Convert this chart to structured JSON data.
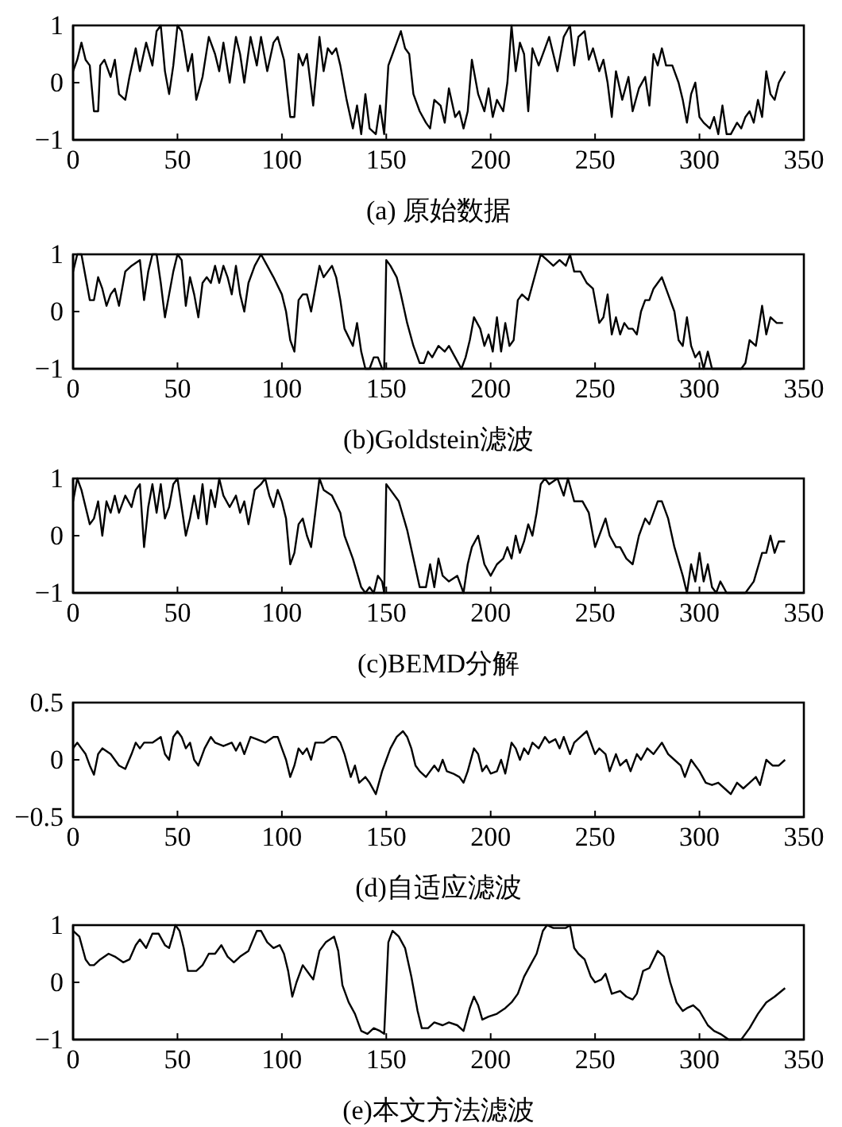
{
  "chart_data": [
    {
      "type": "line",
      "xlabel": "(a) 原始数据",
      "xlim": [
        0,
        350
      ],
      "xticks": [
        0,
        50,
        100,
        150,
        200,
        250,
        300,
        350
      ],
      "ylim": [
        -1,
        1
      ],
      "yticks": [
        -1,
        0,
        1
      ],
      "grid": false,
      "line_style": "solid",
      "marker": "none",
      "series": [
        {
          "color": "#000000",
          "x": [
            0,
            2,
            4,
            6,
            8,
            10,
            12,
            13,
            15,
            18,
            20,
            22,
            25,
            27,
            30,
            32,
            35,
            38,
            40,
            42,
            44,
            46,
            48,
            50,
            52,
            55,
            57,
            59,
            62,
            65,
            68,
            70,
            72,
            75,
            78,
            80,
            82,
            85,
            88,
            90,
            93,
            96,
            98,
            101,
            104,
            106,
            108,
            110,
            112,
            115,
            118,
            120,
            122,
            124,
            126,
            128,
            131,
            134,
            136,
            138,
            140,
            142,
            145,
            147,
            149,
            151,
            153,
            155,
            157,
            159,
            161,
            163,
            166,
            169,
            171,
            173,
            176,
            178,
            180,
            183,
            185,
            187,
            189,
            191,
            194,
            197,
            199,
            201,
            203,
            206,
            208,
            210,
            212,
            214,
            216,
            218,
            220,
            223,
            226,
            228,
            230,
            232,
            235,
            238,
            240,
            242,
            245,
            247,
            249,
            252,
            254,
            256,
            258,
            260,
            263,
            266,
            268,
            271,
            274,
            276,
            278,
            280,
            282,
            284,
            287,
            290,
            292,
            294,
            296,
            298,
            300,
            302,
            305,
            307,
            309,
            311,
            313,
            315,
            318,
            320,
            322,
            324,
            326,
            328,
            330,
            332,
            334,
            336,
            338,
            341
          ],
          "values": [
            0.2,
            0.4,
            0.7,
            0.4,
            0.3,
            -0.5,
            -0.5,
            0.3,
            0.4,
            0.1,
            0.4,
            -0.2,
            -0.3,
            0.1,
            0.6,
            0.2,
            0.7,
            0.3,
            0.9,
            1.0,
            0.2,
            -0.2,
            0.3,
            1.0,
            0.9,
            0.2,
            0.5,
            -0.3,
            0.1,
            0.8,
            0.5,
            0.2,
            0.7,
            0.0,
            0.8,
            0.5,
            0.0,
            0.8,
            0.3,
            0.8,
            0.2,
            0.7,
            0.8,
            0.4,
            -0.6,
            -0.6,
            0.5,
            0.3,
            0.5,
            -0.4,
            0.8,
            0.2,
            0.6,
            0.5,
            0.6,
            0.3,
            -0.3,
            -0.8,
            -0.4,
            -0.9,
            -0.2,
            -0.8,
            -0.9,
            -0.4,
            -0.9,
            0.3,
            0.5,
            0.7,
            0.9,
            0.6,
            0.5,
            -0.2,
            -0.5,
            -0.7,
            -0.8,
            -0.3,
            -0.4,
            -0.7,
            -0.1,
            -0.6,
            -0.5,
            -0.8,
            -0.5,
            0.4,
            -0.2,
            -0.5,
            -0.1,
            -0.6,
            -0.3,
            -0.5,
            0.0,
            1.0,
            0.2,
            0.7,
            0.5,
            -0.5,
            0.6,
            0.3,
            0.6,
            0.8,
            0.5,
            0.2,
            0.8,
            1.0,
            0.3,
            0.8,
            0.9,
            0.4,
            0.6,
            0.2,
            0.4,
            0.0,
            -0.6,
            0.2,
            -0.3,
            0.1,
            -0.5,
            -0.1,
            0.1,
            -0.4,
            0.5,
            0.3,
            0.6,
            0.3,
            0.3,
            0.0,
            -0.3,
            -0.7,
            -0.2,
            0.0,
            -0.6,
            -0.7,
            -0.8,
            -0.6,
            -0.9,
            -0.4,
            -0.9,
            -0.9,
            -0.7,
            -0.8,
            -0.6,
            -0.5,
            -0.7,
            -0.3,
            -0.6,
            0.2,
            -0.2,
            -0.3,
            0.0,
            0.2
          ]
        }
      ]
    },
    {
      "type": "line",
      "xlabel": "(b)Goldstein滤波",
      "xlim": [
        0,
        350
      ],
      "xticks": [
        0,
        50,
        100,
        150,
        200,
        250,
        300,
        350
      ],
      "ylim": [
        -1,
        1
      ],
      "yticks": [
        -1,
        0,
        1
      ],
      "grid": false,
      "line_style": "solid",
      "marker": "none",
      "series": [
        {
          "color": "#000000",
          "x": [
            0,
            2,
            4,
            6,
            8,
            10,
            12,
            14,
            16,
            18,
            20,
            22,
            25,
            28,
            32,
            34,
            36,
            38,
            40,
            42,
            44,
            46,
            48,
            50,
            52,
            54,
            56,
            58,
            60,
            62,
            64,
            66,
            68,
            70,
            72,
            74,
            76,
            78,
            80,
            82,
            84,
            87,
            90,
            93,
            96,
            100,
            102,
            104,
            106,
            108,
            110,
            112,
            114,
            116,
            118,
            120,
            122,
            124,
            126,
            128,
            130,
            134,
            136,
            138,
            140,
            142,
            144,
            146,
            148,
            149,
            150,
            152,
            155,
            157,
            160,
            163,
            166,
            168,
            170,
            172,
            175,
            178,
            180,
            183,
            186,
            188,
            190,
            192,
            195,
            197,
            199,
            201,
            203,
            205,
            207,
            209,
            211,
            213,
            215,
            218,
            221,
            224,
            227,
            230,
            233,
            236,
            238,
            240,
            243,
            246,
            249,
            252,
            254,
            256,
            258,
            260,
            262,
            264,
            266,
            268,
            270,
            272,
            274,
            276,
            278,
            282,
            285,
            288,
            290,
            292,
            294,
            296,
            298,
            300,
            302,
            304,
            306,
            309,
            312,
            316,
            320,
            322,
            324,
            327,
            330,
            332,
            334,
            337,
            340
          ],
          "values": [
            0.7,
            1.0,
            1.0,
            0.6,
            0.2,
            0.2,
            0.6,
            0.4,
            0.1,
            0.3,
            0.4,
            0.1,
            0.7,
            0.8,
            0.9,
            0.2,
            0.7,
            1.0,
            1.0,
            0.5,
            -0.1,
            0.3,
            0.7,
            1.0,
            0.9,
            0.1,
            0.6,
            0.3,
            -0.1,
            0.5,
            0.6,
            0.5,
            0.8,
            0.5,
            0.8,
            0.6,
            0.3,
            0.8,
            0.3,
            0.0,
            0.5,
            0.8,
            1.0,
            0.8,
            0.6,
            0.3,
            0.0,
            -0.5,
            -0.7,
            0.2,
            0.3,
            0.3,
            0.0,
            0.4,
            0.8,
            0.6,
            0.7,
            0.8,
            0.6,
            0.2,
            -0.3,
            -0.6,
            -0.2,
            -0.7,
            -1.0,
            -1.0,
            -0.8,
            -0.8,
            -1.0,
            -1.0,
            0.9,
            0.8,
            0.6,
            0.3,
            -0.2,
            -0.6,
            -0.9,
            -0.9,
            -0.7,
            -0.8,
            -0.6,
            -0.7,
            -0.6,
            -0.8,
            -1.0,
            -0.8,
            -0.5,
            -0.1,
            -0.3,
            -0.6,
            -0.4,
            -0.7,
            -0.1,
            -0.7,
            -0.2,
            -0.6,
            -0.5,
            0.2,
            0.3,
            0.2,
            0.6,
            1.0,
            0.9,
            0.8,
            0.9,
            0.8,
            1.0,
            0.7,
            0.7,
            0.5,
            0.4,
            -0.2,
            -0.1,
            0.3,
            -0.4,
            -0.1,
            -0.4,
            -0.2,
            -0.3,
            -0.3,
            -0.4,
            0.0,
            0.2,
            0.2,
            0.4,
            0.6,
            0.3,
            0.0,
            -0.5,
            -0.6,
            -0.1,
            -0.6,
            -0.8,
            -0.7,
            -1.0,
            -0.7,
            -1.0,
            -1.0,
            -1.0,
            -1.0,
            -1.0,
            -0.9,
            -0.5,
            -0.6,
            0.1,
            -0.4,
            -0.1,
            -0.2,
            -0.2
          ]
        }
      ]
    },
    {
      "type": "line",
      "xlabel": "(c)BEMD分解",
      "xlim": [
        0,
        350
      ],
      "xticks": [
        0,
        50,
        100,
        150,
        200,
        250,
        300,
        350
      ],
      "ylim": [
        -1,
        1
      ],
      "yticks": [
        -1,
        0,
        1
      ],
      "grid": false,
      "line_style": "solid",
      "marker": "none",
      "series": [
        {
          "color": "#000000",
          "x": [
            0,
            2,
            4,
            6,
            8,
            10,
            12,
            14,
            16,
            18,
            20,
            22,
            25,
            28,
            30,
            32,
            34,
            36,
            38,
            40,
            42,
            44,
            46,
            48,
            50,
            52,
            54,
            56,
            58,
            60,
            62,
            64,
            66,
            68,
            70,
            72,
            75,
            78,
            80,
            82,
            84,
            87,
            90,
            92,
            94,
            96,
            98,
            100,
            102,
            104,
            106,
            108,
            110,
            112,
            114,
            116,
            118,
            120,
            124,
            128,
            130,
            134,
            138,
            140,
            142,
            144,
            146,
            148,
            149,
            150,
            152,
            156,
            160,
            163,
            166,
            169,
            171,
            173,
            175,
            177,
            180,
            184,
            187,
            189,
            191,
            194,
            197,
            200,
            203,
            206,
            208,
            210,
            212,
            214,
            216,
            218,
            220,
            222,
            224,
            226,
            228,
            232,
            235,
            237,
            240,
            244,
            247,
            250,
            252,
            255,
            257,
            260,
            262,
            265,
            268,
            271,
            274,
            276,
            280,
            282,
            285,
            288,
            292,
            294,
            296,
            298,
            300,
            302,
            304,
            306,
            308,
            310,
            313,
            317,
            322,
            326,
            330,
            332,
            334,
            336,
            338,
            341
          ],
          "values": [
            0.6,
            1.0,
            0.8,
            0.5,
            0.2,
            0.3,
            0.6,
            0.0,
            0.6,
            0.4,
            0.7,
            0.4,
            0.7,
            0.5,
            0.8,
            0.9,
            -0.2,
            0.5,
            0.9,
            0.4,
            0.9,
            0.3,
            0.5,
            0.9,
            1.0,
            0.5,
            0.0,
            0.3,
            0.7,
            0.3,
            0.9,
            0.2,
            0.8,
            0.5,
            1.0,
            0.7,
            0.5,
            0.7,
            0.4,
            0.6,
            0.2,
            0.8,
            0.9,
            1.0,
            0.7,
            0.5,
            0.8,
            0.6,
            0.3,
            -0.5,
            -0.3,
            0.2,
            0.3,
            0.0,
            -0.2,
            0.4,
            1.0,
            0.8,
            0.7,
            0.4,
            0.0,
            -0.4,
            -0.9,
            -1.0,
            -0.9,
            -1.0,
            -0.7,
            -0.8,
            -1.0,
            0.9,
            0.8,
            0.6,
            0.1,
            -0.4,
            -0.9,
            -0.9,
            -0.5,
            -0.9,
            -0.4,
            -0.7,
            -0.8,
            -0.7,
            -1.0,
            -0.5,
            -0.2,
            0.0,
            -0.5,
            -0.7,
            -0.5,
            -0.4,
            -0.2,
            -0.4,
            0.0,
            -0.3,
            -0.1,
            0.2,
            0.0,
            0.4,
            0.9,
            1.0,
            0.9,
            1.0,
            0.7,
            1.0,
            0.6,
            0.6,
            0.4,
            -0.2,
            0.0,
            0.3,
            0.0,
            -0.2,
            -0.2,
            -0.4,
            -0.5,
            0.0,
            0.3,
            0.2,
            0.6,
            0.6,
            0.3,
            -0.2,
            -0.7,
            -1.0,
            -0.5,
            -0.8,
            -0.3,
            -0.8,
            -0.5,
            -0.9,
            -1.0,
            -0.8,
            -1.0,
            -1.0,
            -1.0,
            -0.8,
            -0.3,
            -0.3,
            0.0,
            -0.3,
            -0.1,
            -0.1
          ]
        }
      ]
    },
    {
      "type": "line",
      "xlabel": "(d)自适应滤波",
      "xlim": [
        0,
        350
      ],
      "xticks": [
        0,
        50,
        100,
        150,
        200,
        250,
        300,
        350
      ],
      "ylim": [
        -0.5,
        0.5
      ],
      "yticks": [
        -0.5,
        0,
        0.5
      ],
      "grid": false,
      "line_style": "solid",
      "marker": "none",
      "series": [
        {
          "color": "#000000",
          "x": [
            0,
            2,
            4,
            6,
            8,
            10,
            12,
            14,
            18,
            22,
            25,
            28,
            30,
            32,
            34,
            38,
            42,
            44,
            46,
            48,
            50,
            52,
            54,
            56,
            58,
            60,
            63,
            66,
            68,
            72,
            76,
            78,
            80,
            82,
            85,
            88,
            92,
            96,
            98,
            100,
            102,
            104,
            106,
            108,
            110,
            112,
            114,
            116,
            120,
            124,
            126,
            128,
            130,
            133,
            135,
            137,
            140,
            142,
            145,
            148,
            150,
            152,
            155,
            158,
            160,
            162,
            164,
            166,
            169,
            171,
            173,
            175,
            177,
            179,
            182,
            185,
            187,
            189,
            192,
            194,
            196,
            198,
            200,
            203,
            205,
            207,
            210,
            212,
            214,
            216,
            218,
            220,
            223,
            226,
            228,
            231,
            233,
            235,
            238,
            240,
            243,
            246,
            248,
            250,
            252,
            255,
            257,
            260,
            262,
            265,
            267,
            270,
            272,
            275,
            278,
            282,
            285,
            288,
            291,
            293,
            296,
            298,
            300,
            303,
            306,
            309,
            312,
            315,
            318,
            321,
            324,
            327,
            329,
            332,
            335,
            338,
            341
          ],
          "values": [
            0.1,
            0.15,
            0.1,
            0.05,
            -0.05,
            -0.13,
            0.05,
            0.1,
            0.05,
            -0.05,
            -0.08,
            0.05,
            0.15,
            0.1,
            0.15,
            0.15,
            0.2,
            0.05,
            0.0,
            0.2,
            0.25,
            0.2,
            0.1,
            0.15,
            0.0,
            -0.05,
            0.1,
            0.2,
            0.15,
            0.12,
            0.15,
            0.08,
            0.15,
            0.05,
            0.2,
            0.18,
            0.15,
            0.2,
            0.2,
            0.1,
            0.0,
            -0.15,
            -0.05,
            0.1,
            0.05,
            0.1,
            0.0,
            0.15,
            0.15,
            0.2,
            0.2,
            0.15,
            0.05,
            -0.15,
            -0.05,
            -0.2,
            -0.15,
            -0.2,
            -0.3,
            -0.1,
            0.0,
            0.1,
            0.2,
            0.25,
            0.2,
            0.1,
            -0.05,
            -0.1,
            -0.15,
            -0.1,
            -0.05,
            -0.1,
            0.0,
            -0.1,
            -0.12,
            -0.15,
            -0.2,
            -0.1,
            0.1,
            0.05,
            -0.1,
            -0.05,
            -0.12,
            -0.1,
            0.0,
            -0.12,
            0.15,
            0.1,
            0.0,
            0.1,
            0.05,
            0.15,
            0.1,
            0.2,
            0.15,
            0.18,
            0.1,
            0.2,
            0.05,
            0.15,
            0.2,
            0.25,
            0.15,
            0.05,
            0.1,
            0.05,
            -0.1,
            0.05,
            -0.05,
            0.0,
            -0.1,
            0.05,
            0.0,
            0.1,
            0.05,
            0.15,
            0.05,
            0.0,
            -0.05,
            -0.15,
            0.0,
            -0.05,
            -0.1,
            -0.2,
            -0.22,
            -0.2,
            -0.25,
            -0.3,
            -0.2,
            -0.25,
            -0.2,
            -0.15,
            -0.22,
            0.0,
            -0.05,
            -0.05,
            0.0
          ]
        }
      ]
    },
    {
      "type": "line",
      "xlabel": "(e)本文方法滤波",
      "xlim": [
        0,
        350
      ],
      "xticks": [
        0,
        50,
        100,
        150,
        200,
        250,
        300,
        350
      ],
      "ylim": [
        -1,
        1
      ],
      "yticks": [
        -1,
        0,
        1
      ],
      "grid": false,
      "line_style": "solid",
      "marker": "none",
      "series": [
        {
          "color": "#000000",
          "x": [
            0,
            3,
            6,
            8,
            10,
            13,
            17,
            20,
            24,
            27,
            30,
            32,
            35,
            38,
            41,
            44,
            46,
            48,
            49,
            51,
            53,
            55,
            59,
            62,
            65,
            68,
            71,
            74,
            77,
            80,
            84,
            88,
            90,
            93,
            96,
            99,
            101,
            103,
            105,
            107,
            110,
            113,
            115,
            118,
            121,
            125,
            127,
            129,
            132,
            135,
            138,
            141,
            144,
            147,
            149,
            151,
            153,
            156,
            159,
            162,
            165,
            167,
            170,
            173,
            177,
            180,
            184,
            187,
            190,
            192,
            194,
            196,
            199,
            203,
            207,
            210,
            213,
            216,
            219,
            222,
            225,
            227,
            230,
            233,
            236,
            238,
            240,
            242,
            245,
            248,
            250,
            253,
            255,
            258,
            262,
            265,
            268,
            270,
            273,
            276,
            280,
            283,
            286,
            289,
            292,
            294,
            297,
            300,
            304,
            307,
            310,
            314,
            318,
            320,
            324,
            328,
            332,
            336,
            341
          ],
          "values": [
            0.9,
            0.8,
            0.4,
            0.3,
            0.3,
            0.4,
            0.5,
            0.45,
            0.35,
            0.4,
            0.65,
            0.75,
            0.6,
            0.85,
            0.85,
            0.65,
            0.6,
            0.85,
            1.0,
            0.9,
            0.6,
            0.2,
            0.2,
            0.3,
            0.5,
            0.5,
            0.65,
            0.45,
            0.35,
            0.45,
            0.55,
            0.9,
            0.9,
            0.7,
            0.6,
            0.65,
            0.5,
            0.2,
            -0.25,
            0.0,
            0.3,
            0.15,
            0.05,
            0.55,
            0.7,
            0.8,
            0.55,
            -0.05,
            -0.35,
            -0.55,
            -0.85,
            -0.9,
            -0.8,
            -0.85,
            -0.9,
            0.7,
            0.9,
            0.8,
            0.6,
            0.1,
            -0.5,
            -0.8,
            -0.8,
            -0.7,
            -0.75,
            -0.7,
            -0.75,
            -0.85,
            -0.45,
            -0.25,
            -0.4,
            -0.65,
            -0.6,
            -0.55,
            -0.45,
            -0.35,
            -0.2,
            0.1,
            0.3,
            0.5,
            0.9,
            1.0,
            0.95,
            0.95,
            0.95,
            1.0,
            0.6,
            0.5,
            0.4,
            0.1,
            0.0,
            0.05,
            0.15,
            -0.2,
            -0.15,
            -0.25,
            -0.3,
            -0.2,
            0.2,
            0.25,
            0.55,
            0.45,
            0.0,
            -0.35,
            -0.5,
            -0.45,
            -0.4,
            -0.5,
            -0.75,
            -0.85,
            -0.9,
            -1.0,
            -1.0,
            -1.0,
            -0.8,
            -0.55,
            -0.35,
            -0.25,
            -0.1
          ]
        }
      ]
    }
  ]
}
